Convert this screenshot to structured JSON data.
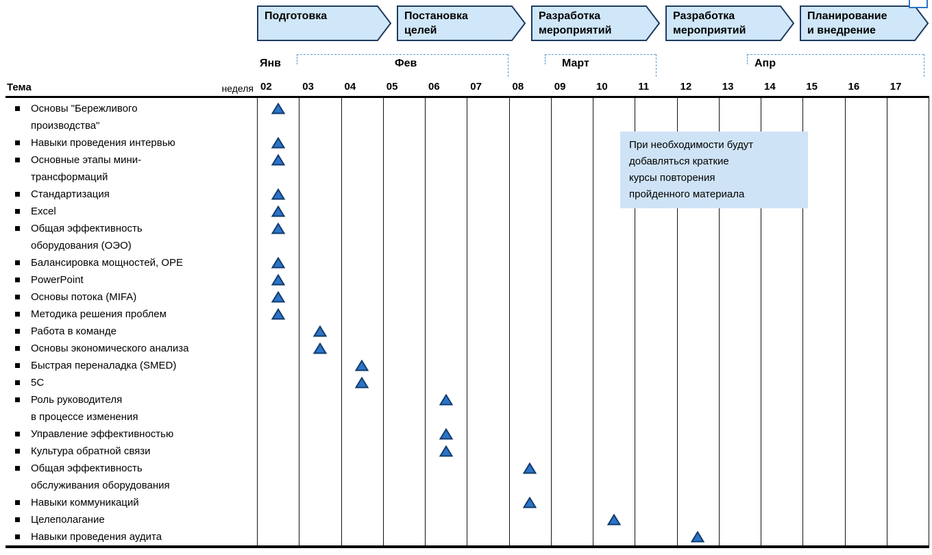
{
  "colors": {
    "banner_fill": "#cfe7f8",
    "banner_border": "#1f3a60",
    "marker_fill": "#2b74c8",
    "marker_border": "#123c6d",
    "note_bg": "#cfe3f6",
    "dashed_line": "#5b9bd5",
    "grid_line": "#111111"
  },
  "chart_data": {
    "type": "gantt",
    "topics_header": "Тема",
    "week_row_label": "неделя",
    "marker_shape": "triangle",
    "x_axis": {
      "label": "неделя",
      "ticks": [
        "02",
        "03",
        "04",
        "05",
        "06",
        "07",
        "08",
        "09",
        "10",
        "11",
        "12",
        "13",
        "14",
        "15",
        "16",
        "17"
      ]
    },
    "months": [
      {
        "label": "Янв"
      },
      {
        "label": "Фев"
      },
      {
        "label": "Март"
      },
      {
        "label": "Апр"
      }
    ],
    "phases": [
      {
        "label": "Подготовка"
      },
      {
        "label": "Постановка\nцелей"
      },
      {
        "label": "Разработка\nмероприятий"
      },
      {
        "label": "Разработка\nмероприятий"
      },
      {
        "label": "Планирование\nи внедрение"
      }
    ],
    "rows": [
      {
        "topic": "Основы \"Бережливого\nпроизводства\"",
        "week": "02"
      },
      {
        "topic": "Навыки проведения интервью",
        "week": "02"
      },
      {
        "topic": "Основные этапы мини-\nтрансформаций",
        "week": "02"
      },
      {
        "topic": "Стандартизация",
        "week": "02"
      },
      {
        "topic": "Excel",
        "week": "02"
      },
      {
        "topic": "Общая эффективность\nоборудования (ОЭО)",
        "week": "02"
      },
      {
        "topic": "Балансировка мощностей, OPE",
        "week": "02"
      },
      {
        "topic": "PowerPoint",
        "week": "02"
      },
      {
        "topic": "Основы потока (MIFA)",
        "week": "02"
      },
      {
        "topic": "Методика решения проблем",
        "week": "02"
      },
      {
        "topic": "Работа в команде",
        "week": "03"
      },
      {
        "topic": "Основы экономического анализа",
        "week": "03"
      },
      {
        "topic": "Быстрая переналадка (SMED)",
        "week": "04"
      },
      {
        "topic": "5С",
        "week": "04"
      },
      {
        "topic": "Роль руководителя\nв процессе изменения",
        "week": "06"
      },
      {
        "topic": "Управление эффективностью",
        "week": "06"
      },
      {
        "topic": "Культура обратной связи",
        "week": "06"
      },
      {
        "topic": "Общая эффективность\nобслуживания оборудования",
        "week": "08"
      },
      {
        "topic": "Навыки коммуникаций",
        "week": "08"
      },
      {
        "topic": "Целеполагание",
        "week": "10"
      },
      {
        "topic": "Навыки проведения аудита",
        "week": "12"
      }
    ],
    "note": "При необходимости будут\nдобавляться краткие\nкурсы повторения\nпройденного материала"
  }
}
